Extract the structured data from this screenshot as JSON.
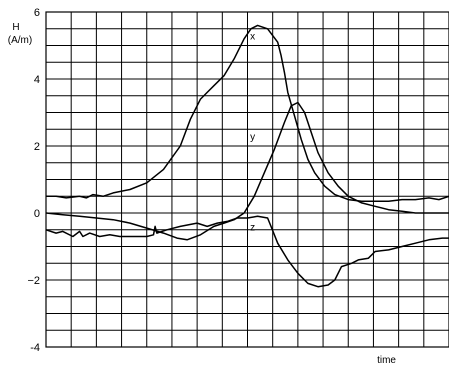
{
  "chart_data": {
    "type": "line",
    "ylabel": "H",
    "yunit": "(A/m)",
    "xlabel": "time",
    "ylim": [
      -4,
      6
    ],
    "xlim": [
      0,
      12
    ],
    "yticks": [
      -4,
      -2,
      0,
      2,
      4,
      6
    ],
    "ytick_labels": [
      "-4",
      "−2",
      "0",
      "2",
      "4",
      "6"
    ],
    "grid": true,
    "legend": "none",
    "x_tick_labels_shown": false,
    "series": [
      {
        "name": "x",
        "x": [
          0,
          0.3,
          0.6,
          1.0,
          1.2,
          1.4,
          1.7,
          2.0,
          2.5,
          3.0,
          3.5,
          4.0,
          4.3,
          4.6,
          4.8,
          5.0,
          5.3,
          5.6,
          5.9,
          6.1,
          6.3,
          6.6,
          6.9,
          7.0,
          7.1,
          7.2,
          7.4,
          7.6,
          7.8,
          8.0,
          8.3,
          8.6,
          9.0,
          9.4,
          9.8,
          10.2,
          10.6,
          11.0,
          11.4,
          11.7,
          12.0
        ],
        "values": [
          0.5,
          0.5,
          0.45,
          0.5,
          0.45,
          0.55,
          0.5,
          0.6,
          0.7,
          0.9,
          1.3,
          2.0,
          2.8,
          3.4,
          3.6,
          3.8,
          4.1,
          4.6,
          5.2,
          5.5,
          5.6,
          5.5,
          5.1,
          4.7,
          4.2,
          3.6,
          2.9,
          2.2,
          1.6,
          1.2,
          0.8,
          0.55,
          0.4,
          0.35,
          0.35,
          0.35,
          0.4,
          0.4,
          0.45,
          0.4,
          0.5
        ],
        "label_at": [
          5.9,
          5.3
        ]
      },
      {
        "name": "y",
        "x": [
          0,
          0.5,
          1.0,
          1.5,
          2.0,
          2.5,
          3.0,
          3.5,
          3.9,
          4.2,
          4.6,
          5.0,
          5.3,
          5.6,
          5.9,
          6.2,
          6.5,
          6.8,
          7.1,
          7.3,
          7.5,
          7.7,
          7.9,
          8.1,
          8.4,
          8.7,
          9.0,
          9.4,
          9.8,
          10.2,
          10.6,
          11.0,
          11.4,
          11.8,
          12.0
        ],
        "values": [
          0.0,
          -0.05,
          -0.1,
          -0.15,
          -0.2,
          -0.3,
          -0.45,
          -0.6,
          -0.75,
          -0.8,
          -0.65,
          -0.4,
          -0.3,
          -0.2,
          0.0,
          0.5,
          1.2,
          1.9,
          2.7,
          3.2,
          3.3,
          3.0,
          2.4,
          1.8,
          1.2,
          0.8,
          0.5,
          0.3,
          0.2,
          0.1,
          0.05,
          0.0,
          0.0,
          0.0,
          0.0
        ],
        "label_at": [
          5.9,
          2.3
        ]
      },
      {
        "name": "z",
        "x": [
          0,
          0.3,
          0.5,
          0.8,
          1.0,
          1.1,
          1.3,
          1.6,
          1.9,
          2.2,
          2.6,
          3.0,
          3.2,
          3.25,
          3.3,
          3.6,
          4.0,
          4.5,
          4.8,
          5.1,
          5.4,
          5.7,
          6.0,
          6.3,
          6.6,
          6.7,
          6.9,
          7.2,
          7.5,
          7.8,
          8.1,
          8.4,
          8.6,
          8.8,
          9.1,
          9.3,
          9.6,
          9.8,
          10.2,
          10.6,
          11.0,
          11.4,
          11.8,
          12.0
        ],
        "values": [
          -0.5,
          -0.6,
          -0.55,
          -0.7,
          -0.55,
          -0.7,
          -0.6,
          -0.7,
          -0.65,
          -0.7,
          -0.7,
          -0.7,
          -0.65,
          -0.4,
          -0.6,
          -0.5,
          -0.4,
          -0.3,
          -0.4,
          -0.3,
          -0.25,
          -0.15,
          -0.15,
          -0.1,
          -0.15,
          -0.4,
          -0.9,
          -1.4,
          -1.8,
          -2.1,
          -2.2,
          -2.15,
          -2.0,
          -1.6,
          -1.5,
          -1.4,
          -1.35,
          -1.15,
          -1.1,
          -1.0,
          -0.9,
          -0.8,
          -0.75,
          -0.75
        ],
        "label_at": [
          5.9,
          -0.4
        ]
      }
    ]
  }
}
